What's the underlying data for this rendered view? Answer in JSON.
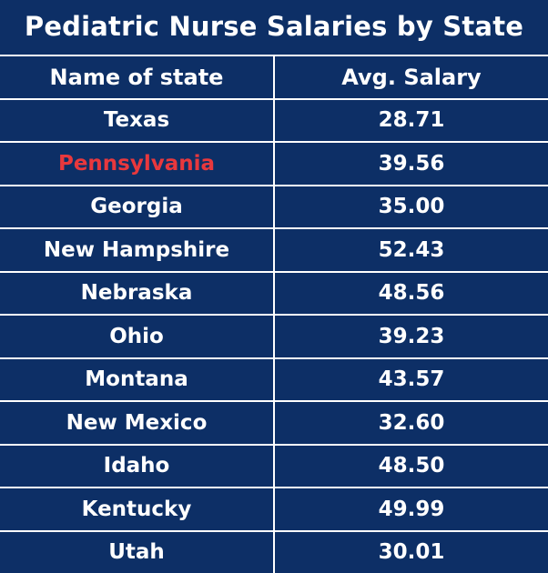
{
  "chart_data": {
    "type": "table",
    "title": "Pediatric Nurse Salaries by State",
    "columns": [
      "Name of state",
      "Avg. Salary"
    ],
    "rows": [
      {
        "state": "Texas",
        "salary": "28.71"
      },
      {
        "state": "Pennsylvania",
        "salary": "39.56"
      },
      {
        "state": "Georgia",
        "salary": "35.00"
      },
      {
        "state": "New Hampshire",
        "salary": "52.43"
      },
      {
        "state": "Nebraska",
        "salary": "48.56"
      },
      {
        "state": "Ohio",
        "salary": "39.23"
      },
      {
        "state": "Montana",
        "salary": "43.57"
      },
      {
        "state": "New Mexico",
        "salary": "32.60"
      },
      {
        "state": "Idaho",
        "salary": "48.50"
      },
      {
        "state": "Kentucky",
        "salary": "49.99"
      },
      {
        "state": "Utah",
        "salary": "30.01"
      }
    ],
    "highlighted_row": 1
  },
  "colors": {
    "background": "#0d2f66",
    "text": "#ffffff",
    "grid": "#ffffff",
    "highlight": "#e8383d"
  }
}
